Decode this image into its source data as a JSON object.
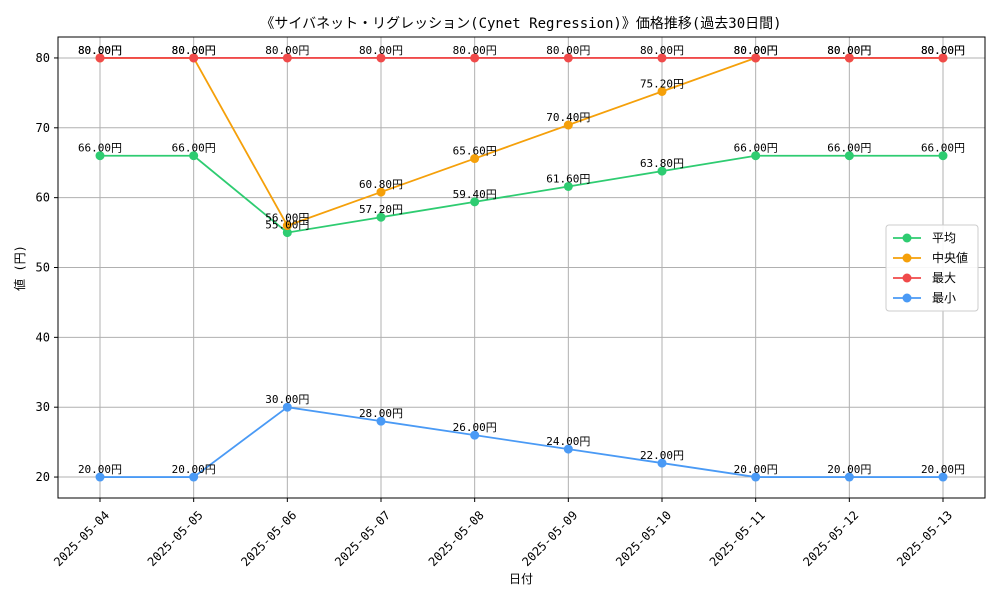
{
  "chart_data": {
    "type": "line",
    "title": "《サイバネット・リグレッション(Cynet Regression)》価格推移(過去30日間)",
    "xlabel": "日付",
    "ylabel": "値 (円)",
    "categories": [
      "2025-05-04",
      "2025-05-05",
      "2025-05-06",
      "2025-05-07",
      "2025-05-08",
      "2025-05-09",
      "2025-05-10",
      "2025-05-11",
      "2025-05-12",
      "2025-05-13"
    ],
    "ylim": [
      17,
      83
    ],
    "yticks": [
      20,
      30,
      40,
      50,
      60,
      70,
      80
    ],
    "grid": true,
    "legend_position": "right",
    "value_suffix": "円",
    "series": [
      {
        "name": "平均",
        "color": "#2ecc71",
        "values": [
          66.0,
          66.0,
          55.0,
          57.2,
          59.4,
          61.6,
          63.8,
          66.0,
          66.0,
          66.0
        ]
      },
      {
        "name": "中央値",
        "color": "#f5a00a",
        "values": [
          80.0,
          80.0,
          56.0,
          60.8,
          65.6,
          70.4,
          75.2,
          80.0,
          80.0,
          80.0
        ]
      },
      {
        "name": "最大",
        "color": "#f04a4a",
        "values": [
          80.0,
          80.0,
          80.0,
          80.0,
          80.0,
          80.0,
          80.0,
          80.0,
          80.0,
          80.0
        ]
      },
      {
        "name": "最小",
        "color": "#4a9af5",
        "values": [
          20.0,
          20.0,
          30.0,
          28.0,
          26.0,
          24.0,
          22.0,
          20.0,
          20.0,
          20.0
        ]
      }
    ]
  }
}
